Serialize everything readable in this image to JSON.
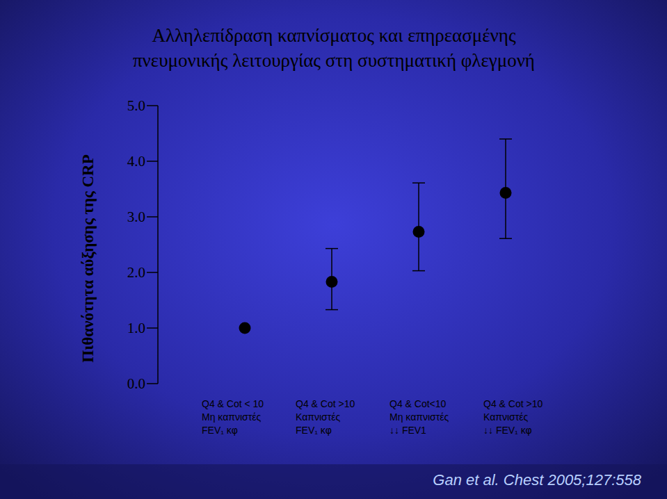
{
  "chart_data": {
    "type": "scatter",
    "title": "Αλληλεπίδραση καπνίσματος και επηρεασμένης\nπνευμονικής λειτουργίας στη συστηματική φλεγμονή",
    "y_label": "Πιθανότητα αύξησης της CRP",
    "categories": [
      "Q4 & Cot < 10\nΜη καπνιστές\nFEV₁ κφ",
      "Q4 & Cot >10\nΚαπνιστές\nFEV₁ κφ",
      "Q4 & Cot<10\nΜη καπνιστές\n↓↓ FEV1",
      "Q4 & Cot >10\nΚαπνιστές\n↓↓ FEV₁ κφ"
    ],
    "values": [
      1.0,
      1.83,
      2.73,
      3.43
    ],
    "lower": [
      null,
      1.33,
      2.03,
      2.61
    ],
    "upper": [
      null,
      2.43,
      3.61,
      4.4
    ],
    "color": "#000000",
    "marker": "circle",
    "ylim": [
      0,
      5
    ],
    "yticks": [
      {
        "value": 0,
        "label": "0.0"
      },
      {
        "value": 1,
        "label": "1.0"
      },
      {
        "value": 2,
        "label": "2.0"
      },
      {
        "value": 3,
        "label": "3.0"
      },
      {
        "value": 4,
        "label": "4.0"
      },
      {
        "value": 5,
        "label": "5.0"
      }
    ],
    "grid": false,
    "source": "Gan et al. Chest 2005;127:558"
  }
}
